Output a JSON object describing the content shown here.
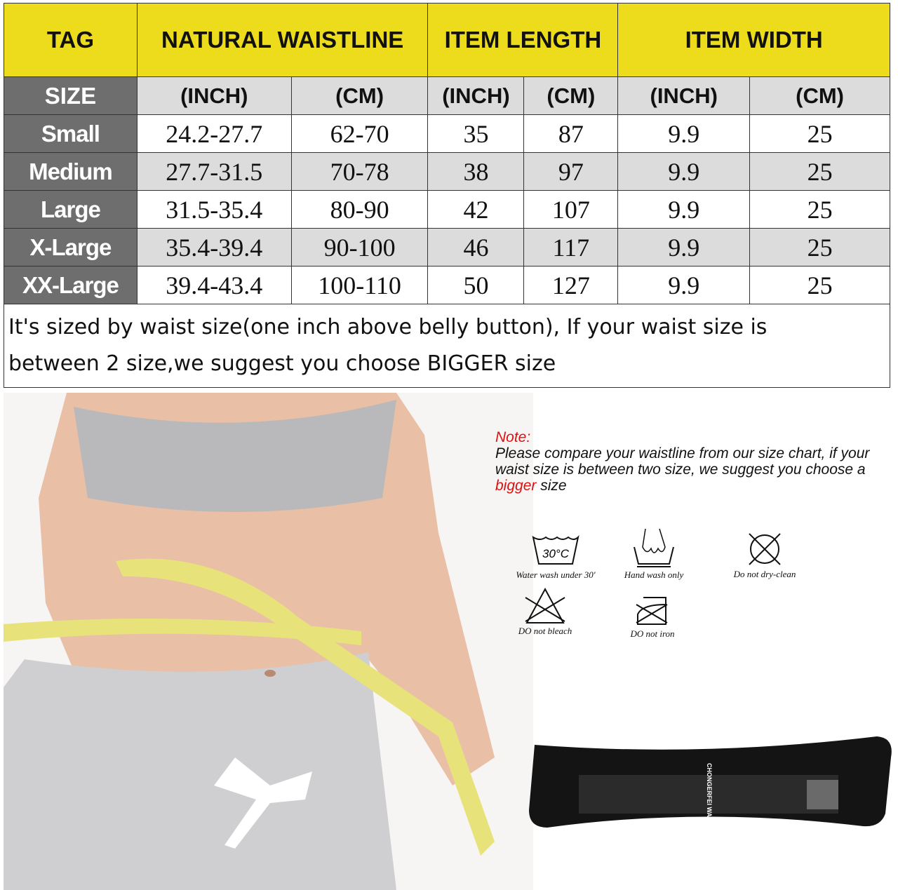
{
  "table": {
    "headers": [
      "TAG",
      "NATURAL WAISTLINE",
      "ITEM LENGTH",
      "ITEM WIDTH"
    ],
    "subheaders": [
      "SIZE",
      "(INCH)",
      "(CM)",
      "(INCH)",
      "(CM)",
      "(INCH)",
      "(CM)"
    ],
    "rows": [
      [
        "Small",
        "24.2-27.7",
        "62-70",
        "35",
        "87",
        "9.9",
        "25"
      ],
      [
        "Medium",
        "27.7-31.5",
        "70-78",
        "38",
        "97",
        "9.9",
        "25"
      ],
      [
        "Large",
        "31.5-35.4",
        "80-90",
        "42",
        "107",
        "9.9",
        "25"
      ],
      [
        "X-Large",
        "35.4-39.4",
        "90-100",
        "46",
        "117",
        "9.9",
        "25"
      ],
      [
        "XX-Large",
        "39.4-43.4",
        "100-110",
        "50",
        "127",
        "9.9",
        "25"
      ]
    ],
    "footnote_line1": "It's sized by waist size(one inch above belly button), If your waist size is",
    "footnote_line2": "between 2 size,we suggest you choose BIGGER size"
  },
  "note": {
    "title": "Note:",
    "text_before": "Please compare your waistline from our size chart, if your waist size is between two size, we suggest you choose a ",
    "highlight": "bigger",
    "text_after": " size"
  },
  "care": [
    {
      "icon": "wash-30c-icon",
      "label": "Water wash under 30'",
      "temp": "30°C"
    },
    {
      "icon": "hand-wash-icon",
      "label": "Hand wash only"
    },
    {
      "icon": "no-dry-clean-icon",
      "label": "Do not dry-clean"
    },
    {
      "icon": "no-bleach-icon",
      "label": "DO not bleach"
    },
    {
      "icon": "no-iron-icon",
      "label": "DO not iron"
    }
  ],
  "product": {
    "belt_text": "CHONGERFEI WAIST TRAINER"
  },
  "colors": {
    "header_yellow": "#ecdc1c",
    "tag_gray": "#6e6e6e",
    "row_gray": "#dcdcdc",
    "note_red": "#d11111"
  }
}
